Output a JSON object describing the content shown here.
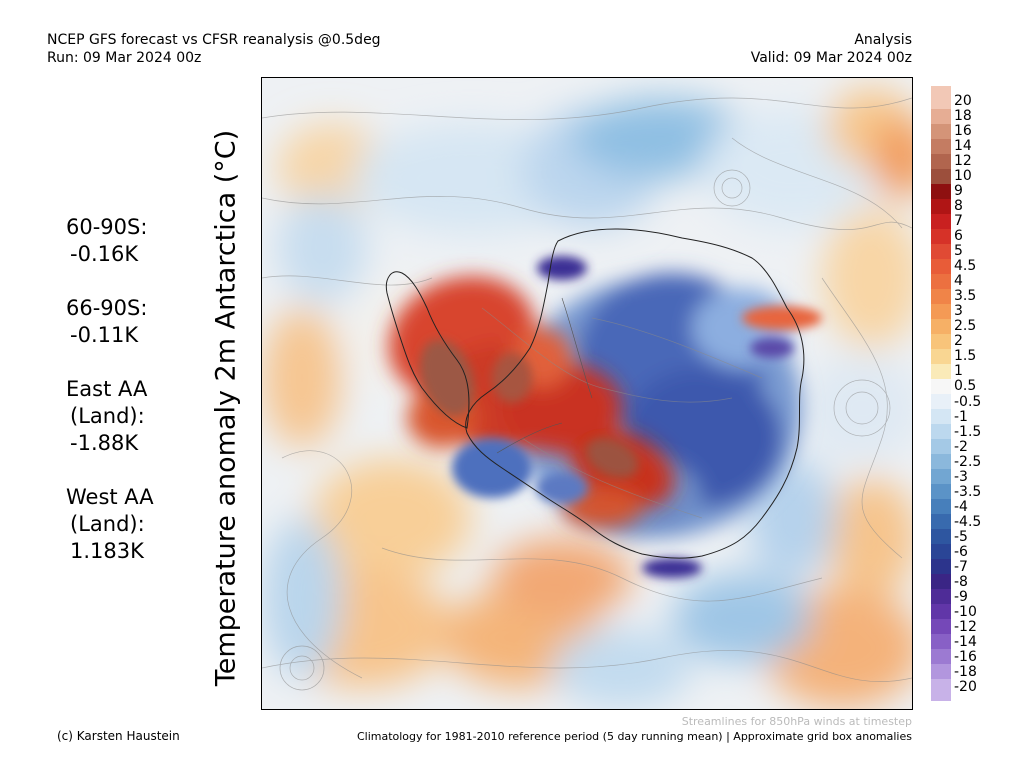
{
  "header": {
    "title_line1": "NCEP GFS forecast vs CFSR reanalysis @0.5deg",
    "title_line2": "Run: 09 Mar 2024 00z",
    "right_line1": "Analysis",
    "right_line2": "Valid: 09 Mar 2024 00z"
  },
  "axis_label": "Temperature anomaly 2m Antarctica (°C)",
  "stats": [
    {
      "label": "60-90S:",
      "value": "-0.16K"
    },
    {
      "label": "66-90S:",
      "value": "-0.11K"
    },
    {
      "label": "East AA",
      "label2": "(Land):",
      "value": "-1.88K"
    },
    {
      "label": "West AA",
      "label2": "(Land):",
      "value": "1.183K"
    }
  ],
  "colorbar": {
    "levels": [
      "20",
      "18",
      "16",
      "14",
      "12",
      "10",
      "9",
      "8",
      "7",
      "6",
      "5",
      "4.5",
      "4",
      "3.5",
      "3",
      "2.5",
      "2",
      "1.5",
      "1",
      "0.5",
      "-0.5",
      "-1",
      "-1.5",
      "-2",
      "-2.5",
      "-3",
      "-3.5",
      "-4",
      "-4.5",
      "-5",
      "-6",
      "-7",
      "-8",
      "-9",
      "-10",
      "-12",
      "-14",
      "-16",
      "-18",
      "-20"
    ],
    "colors": [
      "#f2c8b6",
      "#e6ad94",
      "#d49478",
      "#c47c62",
      "#b1654e",
      "#9c4f3c",
      "#8e1010",
      "#b01515",
      "#c92020",
      "#d63228",
      "#e04a34",
      "#e85c38",
      "#ec7040",
      "#f08448",
      "#f49a55",
      "#f6b066",
      "#f8c47a",
      "#f9d692",
      "#faeab8",
      "#f7f7f7",
      "#e8f0f8",
      "#d4e6f4",
      "#bcd8ee",
      "#a4c9e6",
      "#8bb8dc",
      "#72a6d2",
      "#5b93c7",
      "#477fbb",
      "#386aae",
      "#2e56a0",
      "#2a4596",
      "#2c348c",
      "#3a2585",
      "#4e2c97",
      "#6136a8",
      "#7548b8",
      "#8860c6",
      "#9c7ad2",
      "#b296de",
      "#c8b2e8"
    ]
  },
  "footer": {
    "note": "Streamlines for 850hPa winds at timestep",
    "credit": "(c) Karsten Haustein",
    "climatology": "Climatology for 1981-2010 reference period (5 day running mean) | Approximate grid box anomalies"
  }
}
